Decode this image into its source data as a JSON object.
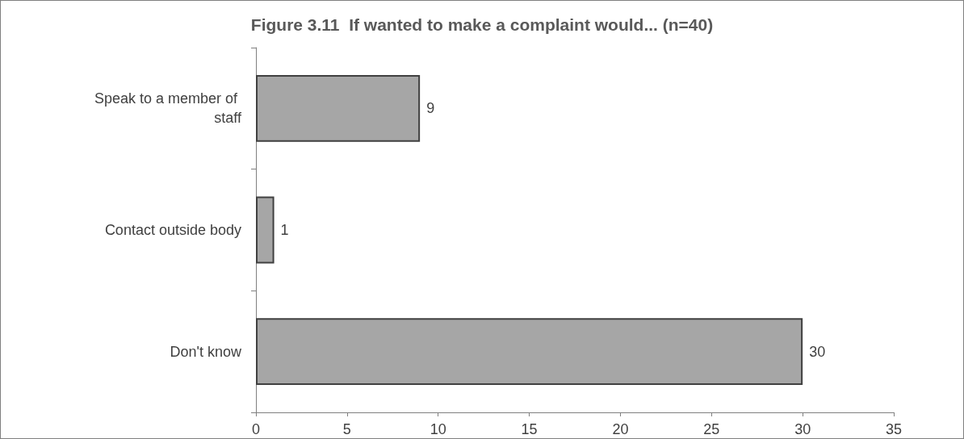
{
  "chart_data": {
    "type": "bar",
    "orientation": "horizontal",
    "title": "Figure 3.11  If wanted to make a complaint would... (n=40)",
    "categories": [
      "Speak to a member of staff",
      "Contact outside body",
      "Don't know"
    ],
    "values": [
      9,
      1,
      30
    ],
    "color": "#a6a6a6",
    "xlim": [
      0,
      35
    ],
    "xticks": [
      0,
      5,
      10,
      15,
      20,
      25,
      30,
      35
    ],
    "data_labels": true,
    "grid": false
  }
}
